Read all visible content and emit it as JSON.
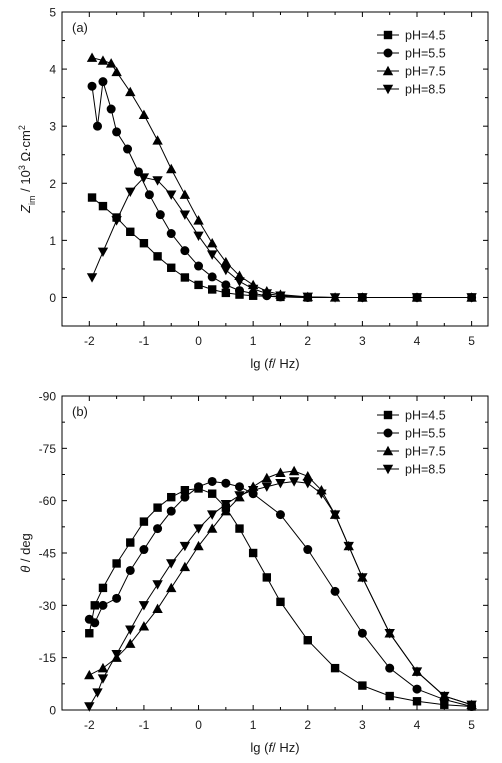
{
  "figure": {
    "panels": [
      {
        "tag": "(a)",
        "xlabel_parts": [
          "lg (",
          "f",
          "/ Hz)"
        ],
        "ylabel_parts": [
          "Z",
          "im",
          " / 10",
          "3",
          " Ω·cm",
          "2"
        ]
      },
      {
        "tag": "(b)",
        "xlabel_parts": [
          "lg (",
          "f",
          "/ Hz)"
        ],
        "ylabel_parts": [
          "θ",
          " / deg"
        ]
      }
    ]
  },
  "chart_data": [
    {
      "type": "line",
      "title": "(a)",
      "xlabel": "lg (f / Hz)",
      "ylabel": "Z_im / 10^3 Ω·cm^2",
      "xlim": [
        -2.5,
        5.3
      ],
      "ylim": [
        -0.5,
        5
      ],
      "xticks": [
        -2,
        -1,
        0,
        1,
        2,
        3,
        4,
        5
      ],
      "xtick_labels": [
        "-2",
        "-1",
        "0",
        "1",
        "2",
        "3",
        "4",
        "5"
      ],
      "yticks": [
        0,
        1,
        2,
        3,
        4,
        5
      ],
      "ytick_labels": [
        "0",
        "1",
        "2",
        "3",
        "4",
        "5"
      ],
      "grid": false,
      "legend_position": "top-right",
      "series": [
        {
          "name": "pH=4.5",
          "marker": "square",
          "x": [
            -1.95,
            -1.75,
            -1.5,
            -1.25,
            -1.0,
            -0.75,
            -0.5,
            -0.25,
            0.0,
            0.25,
            0.5,
            0.75,
            1.0,
            1.5,
            2.0,
            3.0,
            4.0,
            5.0
          ],
          "y": [
            1.75,
            1.6,
            1.4,
            1.15,
            0.95,
            0.72,
            0.52,
            0.35,
            0.22,
            0.14,
            0.08,
            0.05,
            0.03,
            0.01,
            0.0,
            0.0,
            0.0,
            0.0
          ]
        },
        {
          "name": "pH=5.5",
          "marker": "circle",
          "x": [
            -1.95,
            -1.85,
            -1.75,
            -1.6,
            -1.5,
            -1.3,
            -1.1,
            -0.9,
            -0.7,
            -0.5,
            -0.25,
            0.0,
            0.25,
            0.5,
            0.75,
            1.0,
            1.25,
            1.5,
            2.0,
            3.0,
            4.0,
            5.0
          ],
          "y": [
            3.7,
            3.0,
            3.78,
            3.3,
            2.9,
            2.6,
            2.2,
            1.8,
            1.45,
            1.12,
            0.82,
            0.55,
            0.36,
            0.22,
            0.12,
            0.07,
            0.03,
            0.01,
            0.0,
            0.0,
            0.0,
            0.0
          ]
        },
        {
          "name": "pH=7.5",
          "marker": "triangle-up",
          "x": [
            -1.95,
            -1.75,
            -1.6,
            -1.5,
            -1.25,
            -1.0,
            -0.75,
            -0.5,
            -0.25,
            0.0,
            0.25,
            0.5,
            0.75,
            1.0,
            1.25,
            1.5,
            2.0,
            2.5,
            3.0,
            4.0,
            5.0
          ],
          "y": [
            4.2,
            4.15,
            4.1,
            3.95,
            3.6,
            3.2,
            2.75,
            2.25,
            1.8,
            1.35,
            0.95,
            0.62,
            0.38,
            0.22,
            0.11,
            0.05,
            0.01,
            0.0,
            0.0,
            0.0,
            0.0
          ]
        },
        {
          "name": "pH=8.5",
          "marker": "triangle-down",
          "x": [
            -1.95,
            -1.75,
            -1.5,
            -1.25,
            -1.0,
            -0.75,
            -0.5,
            -0.25,
            0.0,
            0.25,
            0.5,
            0.75,
            1.0,
            1.25,
            1.5,
            2.0,
            2.5,
            3.0,
            4.0,
            5.0
          ],
          "y": [
            0.35,
            0.8,
            1.35,
            1.85,
            2.1,
            2.05,
            1.8,
            1.45,
            1.08,
            0.75,
            0.48,
            0.28,
            0.15,
            0.07,
            0.03,
            0.01,
            0.0,
            0.0,
            0.0,
            0.0
          ]
        }
      ]
    },
    {
      "type": "line",
      "title": "(b)",
      "xlabel": "lg (f / Hz)",
      "ylabel": "θ / deg",
      "xlim": [
        -2.5,
        5.3
      ],
      "ylim": [
        0,
        -90
      ],
      "xticks": [
        -2,
        -1,
        0,
        1,
        2,
        3,
        4,
        5
      ],
      "xtick_labels": [
        "-2",
        "-1",
        "0",
        "1",
        "2",
        "3",
        "4",
        "5"
      ],
      "yticks": [
        0,
        -15,
        -30,
        -45,
        -60,
        -75,
        -90
      ],
      "ytick_labels": [
        "0",
        "-15",
        "-30",
        "-45",
        "-60",
        "-75",
        "-90"
      ],
      "grid": false,
      "legend_position": "top-right",
      "series": [
        {
          "name": "pH=4.5",
          "marker": "square",
          "x": [
            -2.0,
            -1.9,
            -1.75,
            -1.5,
            -1.25,
            -1.0,
            -0.75,
            -0.5,
            -0.25,
            0.0,
            0.25,
            0.5,
            0.75,
            1.0,
            1.25,
            1.5,
            2.0,
            2.5,
            3.0,
            3.5,
            4.0,
            4.5,
            5.0
          ],
          "y": [
            -22,
            -30,
            -35,
            -42,
            -48,
            -54,
            -58,
            -61,
            -63,
            -63.5,
            -62,
            -58,
            -52,
            -45,
            -38,
            -31,
            -20,
            -12,
            -7,
            -4,
            -2.5,
            -1.5,
            -1
          ]
        },
        {
          "name": "pH=5.5",
          "marker": "circle",
          "x": [
            -2.0,
            -1.9,
            -1.75,
            -1.5,
            -1.25,
            -1.0,
            -0.75,
            -0.5,
            -0.25,
            0.0,
            0.25,
            0.5,
            0.75,
            1.0,
            1.5,
            2.0,
            2.5,
            3.0,
            3.5,
            4.0,
            4.5,
            5.0
          ],
          "y": [
            -26,
            -25,
            -30,
            -32,
            -40,
            -46,
            -52,
            -57,
            -61,
            -64,
            -65.5,
            -65,
            -64,
            -62,
            -56,
            -46,
            -34,
            -22,
            -12,
            -6,
            -3,
            -1
          ]
        },
        {
          "name": "pH=7.5",
          "marker": "triangle-up",
          "x": [
            -2.0,
            -1.75,
            -1.5,
            -1.25,
            -1.0,
            -0.75,
            -0.5,
            -0.25,
            0.0,
            0.25,
            0.5,
            0.75,
            1.0,
            1.25,
            1.5,
            1.75,
            2.0,
            2.25,
            2.5,
            2.75,
            3.0,
            3.5,
            4.0,
            4.5,
            5.0
          ],
          "y": [
            -10,
            -12,
            -15,
            -19,
            -24,
            -29,
            -35,
            -41,
            -47,
            -52,
            -57,
            -61,
            -64,
            -66.5,
            -68,
            -68.5,
            -67,
            -63,
            -56,
            -47,
            -38,
            -22,
            -11,
            -4,
            -1.5
          ]
        },
        {
          "name": "pH=8.5",
          "marker": "triangle-down",
          "x": [
            -2.0,
            -1.85,
            -1.75,
            -1.5,
            -1.25,
            -1.0,
            -0.75,
            -0.5,
            -0.25,
            0.0,
            0.25,
            0.5,
            0.75,
            1.0,
            1.25,
            1.5,
            1.75,
            2.0,
            2.25,
            2.5,
            2.75,
            3.0,
            3.5,
            4.0,
            4.5,
            5.0
          ],
          "y": [
            -1,
            -5,
            -9,
            -16,
            -23,
            -30,
            -36,
            -42,
            -47,
            -52,
            -56,
            -59,
            -61.5,
            -63,
            -64,
            -65,
            -65.5,
            -65,
            -62,
            -56,
            -47,
            -38,
            -22,
            -11,
            -4,
            -1.5
          ]
        }
      ]
    }
  ]
}
